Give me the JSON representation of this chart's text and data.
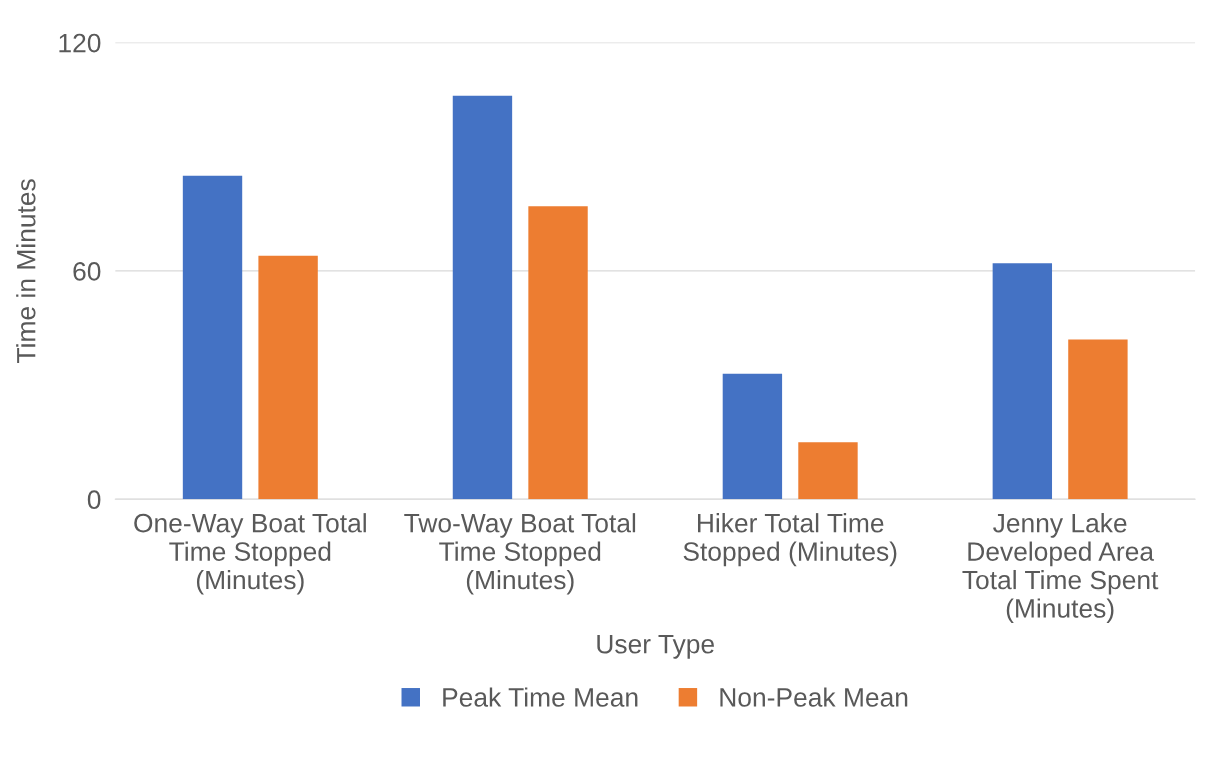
{
  "chart_data": {
    "type": "bar",
    "xlabel": "User Type",
    "ylabel": "Time in Minutes",
    "categories": [
      "One-Way Boat Total\nTime Stopped\n(Minutes)",
      "Two-Way Boat Total\nTime Stopped\n(Minutes)",
      "Hiker Total Time\nStopped (Minutes)",
      "Jenny Lake\nDeveloped Area\nTotal Time Spent\n(Minutes)"
    ],
    "series": [
      {
        "name": "Peak Time Mean",
        "color": "#4472c4",
        "values": [
          85,
          106,
          33,
          62
        ]
      },
      {
        "name": "Non-Peak Mean",
        "color": "#ed7d31",
        "values": [
          64,
          77,
          15,
          42
        ]
      }
    ],
    "ylim": [
      0,
      120
    ],
    "yticks": [
      0,
      60,
      120
    ],
    "grid": "y",
    "legend": "bottom"
  }
}
